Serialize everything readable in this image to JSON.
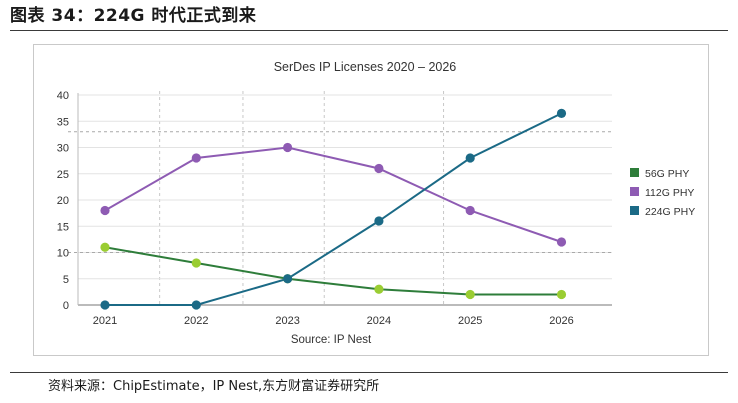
{
  "figure_title": "图表 34：224G 时代正式到来",
  "source_note": "资料来源：ChipEstimate，IP Nest,东方财富证券研究所",
  "colors": {
    "series_56g": "#2e7d3a",
    "series_112g": "#8e5bb3",
    "series_224g": "#1b6a86",
    "marker_56g": "#9acd32",
    "grid": "#c8c8c8",
    "axis_text": "#333333"
  },
  "chart_data": {
    "type": "line",
    "title": "SerDes IP Licenses 2020 – 2026",
    "source": "Source: IP Nest",
    "categories": [
      "2021",
      "2022",
      "2023",
      "2024",
      "2025",
      "2026"
    ],
    "ylim": [
      0,
      40
    ],
    "yticks": [
      0,
      5,
      10,
      15,
      20,
      25,
      30,
      35,
      40
    ],
    "ref_lines": [
      10,
      33
    ],
    "legend_position": "right",
    "series": [
      {
        "name": "56G PHY",
        "values": [
          11,
          8,
          5,
          3,
          2,
          2
        ]
      },
      {
        "name": "112G PHY",
        "values": [
          18,
          28,
          30,
          26,
          18,
          12
        ]
      },
      {
        "name": "224G PHY",
        "values": [
          0,
          0,
          5,
          16,
          28,
          36.5
        ]
      }
    ]
  }
}
